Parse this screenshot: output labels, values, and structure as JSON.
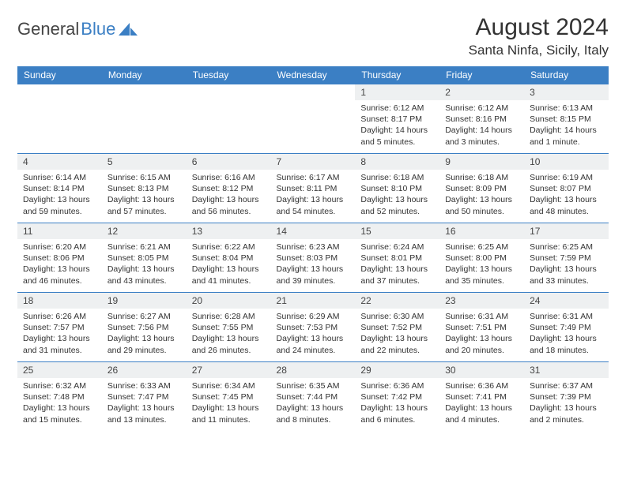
{
  "brand": {
    "part1": "General",
    "part2": "Blue"
  },
  "colors": {
    "header_bg": "#3b7fc4",
    "header_text": "#ffffff",
    "daynum_bg": "#eef0f1",
    "border": "#3b7fc4",
    "body_text": "#333333"
  },
  "title": "August 2024",
  "location": "Santa Ninfa, Sicily, Italy",
  "weekdays": [
    "Sunday",
    "Monday",
    "Tuesday",
    "Wednesday",
    "Thursday",
    "Friday",
    "Saturday"
  ],
  "weeks": [
    [
      {
        "empty": true
      },
      {
        "empty": true
      },
      {
        "empty": true
      },
      {
        "empty": true
      },
      {
        "day": "1",
        "sunrise": "Sunrise: 6:12 AM",
        "sunset": "Sunset: 8:17 PM",
        "daylight1": "Daylight: 14 hours",
        "daylight2": "and 5 minutes."
      },
      {
        "day": "2",
        "sunrise": "Sunrise: 6:12 AM",
        "sunset": "Sunset: 8:16 PM",
        "daylight1": "Daylight: 14 hours",
        "daylight2": "and 3 minutes."
      },
      {
        "day": "3",
        "sunrise": "Sunrise: 6:13 AM",
        "sunset": "Sunset: 8:15 PM",
        "daylight1": "Daylight: 14 hours",
        "daylight2": "and 1 minute."
      }
    ],
    [
      {
        "day": "4",
        "sunrise": "Sunrise: 6:14 AM",
        "sunset": "Sunset: 8:14 PM",
        "daylight1": "Daylight: 13 hours",
        "daylight2": "and 59 minutes."
      },
      {
        "day": "5",
        "sunrise": "Sunrise: 6:15 AM",
        "sunset": "Sunset: 8:13 PM",
        "daylight1": "Daylight: 13 hours",
        "daylight2": "and 57 minutes."
      },
      {
        "day": "6",
        "sunrise": "Sunrise: 6:16 AM",
        "sunset": "Sunset: 8:12 PM",
        "daylight1": "Daylight: 13 hours",
        "daylight2": "and 56 minutes."
      },
      {
        "day": "7",
        "sunrise": "Sunrise: 6:17 AM",
        "sunset": "Sunset: 8:11 PM",
        "daylight1": "Daylight: 13 hours",
        "daylight2": "and 54 minutes."
      },
      {
        "day": "8",
        "sunrise": "Sunrise: 6:18 AM",
        "sunset": "Sunset: 8:10 PM",
        "daylight1": "Daylight: 13 hours",
        "daylight2": "and 52 minutes."
      },
      {
        "day": "9",
        "sunrise": "Sunrise: 6:18 AM",
        "sunset": "Sunset: 8:09 PM",
        "daylight1": "Daylight: 13 hours",
        "daylight2": "and 50 minutes."
      },
      {
        "day": "10",
        "sunrise": "Sunrise: 6:19 AM",
        "sunset": "Sunset: 8:07 PM",
        "daylight1": "Daylight: 13 hours",
        "daylight2": "and 48 minutes."
      }
    ],
    [
      {
        "day": "11",
        "sunrise": "Sunrise: 6:20 AM",
        "sunset": "Sunset: 8:06 PM",
        "daylight1": "Daylight: 13 hours",
        "daylight2": "and 46 minutes."
      },
      {
        "day": "12",
        "sunrise": "Sunrise: 6:21 AM",
        "sunset": "Sunset: 8:05 PM",
        "daylight1": "Daylight: 13 hours",
        "daylight2": "and 43 minutes."
      },
      {
        "day": "13",
        "sunrise": "Sunrise: 6:22 AM",
        "sunset": "Sunset: 8:04 PM",
        "daylight1": "Daylight: 13 hours",
        "daylight2": "and 41 minutes."
      },
      {
        "day": "14",
        "sunrise": "Sunrise: 6:23 AM",
        "sunset": "Sunset: 8:03 PM",
        "daylight1": "Daylight: 13 hours",
        "daylight2": "and 39 minutes."
      },
      {
        "day": "15",
        "sunrise": "Sunrise: 6:24 AM",
        "sunset": "Sunset: 8:01 PM",
        "daylight1": "Daylight: 13 hours",
        "daylight2": "and 37 minutes."
      },
      {
        "day": "16",
        "sunrise": "Sunrise: 6:25 AM",
        "sunset": "Sunset: 8:00 PM",
        "daylight1": "Daylight: 13 hours",
        "daylight2": "and 35 minutes."
      },
      {
        "day": "17",
        "sunrise": "Sunrise: 6:25 AM",
        "sunset": "Sunset: 7:59 PM",
        "daylight1": "Daylight: 13 hours",
        "daylight2": "and 33 minutes."
      }
    ],
    [
      {
        "day": "18",
        "sunrise": "Sunrise: 6:26 AM",
        "sunset": "Sunset: 7:57 PM",
        "daylight1": "Daylight: 13 hours",
        "daylight2": "and 31 minutes."
      },
      {
        "day": "19",
        "sunrise": "Sunrise: 6:27 AM",
        "sunset": "Sunset: 7:56 PM",
        "daylight1": "Daylight: 13 hours",
        "daylight2": "and 29 minutes."
      },
      {
        "day": "20",
        "sunrise": "Sunrise: 6:28 AM",
        "sunset": "Sunset: 7:55 PM",
        "daylight1": "Daylight: 13 hours",
        "daylight2": "and 26 minutes."
      },
      {
        "day": "21",
        "sunrise": "Sunrise: 6:29 AM",
        "sunset": "Sunset: 7:53 PM",
        "daylight1": "Daylight: 13 hours",
        "daylight2": "and 24 minutes."
      },
      {
        "day": "22",
        "sunrise": "Sunrise: 6:30 AM",
        "sunset": "Sunset: 7:52 PM",
        "daylight1": "Daylight: 13 hours",
        "daylight2": "and 22 minutes."
      },
      {
        "day": "23",
        "sunrise": "Sunrise: 6:31 AM",
        "sunset": "Sunset: 7:51 PM",
        "daylight1": "Daylight: 13 hours",
        "daylight2": "and 20 minutes."
      },
      {
        "day": "24",
        "sunrise": "Sunrise: 6:31 AM",
        "sunset": "Sunset: 7:49 PM",
        "daylight1": "Daylight: 13 hours",
        "daylight2": "and 18 minutes."
      }
    ],
    [
      {
        "day": "25",
        "sunrise": "Sunrise: 6:32 AM",
        "sunset": "Sunset: 7:48 PM",
        "daylight1": "Daylight: 13 hours",
        "daylight2": "and 15 minutes."
      },
      {
        "day": "26",
        "sunrise": "Sunrise: 6:33 AM",
        "sunset": "Sunset: 7:47 PM",
        "daylight1": "Daylight: 13 hours",
        "daylight2": "and 13 minutes."
      },
      {
        "day": "27",
        "sunrise": "Sunrise: 6:34 AM",
        "sunset": "Sunset: 7:45 PM",
        "daylight1": "Daylight: 13 hours",
        "daylight2": "and 11 minutes."
      },
      {
        "day": "28",
        "sunrise": "Sunrise: 6:35 AM",
        "sunset": "Sunset: 7:44 PM",
        "daylight1": "Daylight: 13 hours",
        "daylight2": "and 8 minutes."
      },
      {
        "day": "29",
        "sunrise": "Sunrise: 6:36 AM",
        "sunset": "Sunset: 7:42 PM",
        "daylight1": "Daylight: 13 hours",
        "daylight2": "and 6 minutes."
      },
      {
        "day": "30",
        "sunrise": "Sunrise: 6:36 AM",
        "sunset": "Sunset: 7:41 PM",
        "daylight1": "Daylight: 13 hours",
        "daylight2": "and 4 minutes."
      },
      {
        "day": "31",
        "sunrise": "Sunrise: 6:37 AM",
        "sunset": "Sunset: 7:39 PM",
        "daylight1": "Daylight: 13 hours",
        "daylight2": "and 2 minutes."
      }
    ]
  ]
}
